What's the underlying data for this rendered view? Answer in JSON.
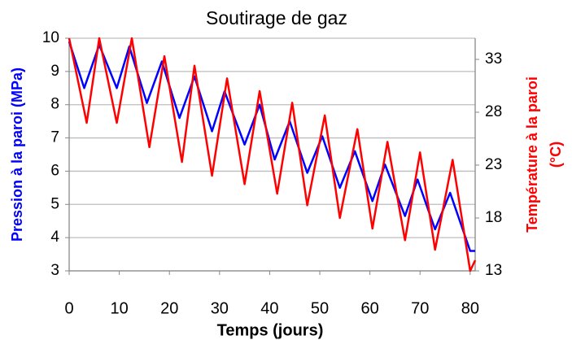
{
  "chart_data": {
    "type": "line",
    "title": "Soutirage de gaz",
    "xlabel": "Temps (jours)",
    "ylabel": "Pression à la paroi (MPa)",
    "y2label": [
      "Température à la paroi",
      "(°C)"
    ],
    "xlim": [
      0,
      81
    ],
    "xticks": [
      0,
      10,
      20,
      30,
      40,
      50,
      60,
      70,
      80
    ],
    "ylim": [
      3,
      10
    ],
    "yticks": [
      3,
      4,
      5,
      6,
      7,
      8,
      9,
      10
    ],
    "y2lim": [
      13,
      35
    ],
    "y2ticks": [
      13,
      18,
      23,
      28,
      33
    ],
    "grid": true,
    "series": [
      {
        "color": "#0000ff",
        "axis": "y",
        "x": [
          0,
          3,
          6,
          9.5,
          12,
          15.5,
          18.5,
          22,
          25,
          28.5,
          31,
          35,
          38,
          41,
          44,
          47.5,
          50.5,
          54,
          57,
          60.5,
          63,
          67,
          69.5,
          73,
          76,
          80,
          81
        ],
        "values": [
          9.9,
          8.5,
          9.8,
          8.5,
          9.75,
          8.05,
          9.3,
          7.6,
          8.85,
          7.2,
          8.4,
          6.8,
          8.0,
          6.35,
          7.5,
          5.95,
          7.05,
          5.5,
          6.6,
          5.1,
          6.2,
          4.65,
          5.75,
          4.25,
          5.35,
          3.6,
          3.6
        ]
      },
      {
        "color": "#ff0000",
        "axis": "y2",
        "x": [
          0,
          3.5,
          6,
          9.5,
          12.5,
          16,
          19,
          22.5,
          25,
          28.5,
          31.5,
          35,
          38,
          41.5,
          44.5,
          47.5,
          51,
          54,
          57.5,
          60.5,
          63.5,
          67,
          70,
          73,
          76.5,
          80,
          81
        ],
        "values": [
          35,
          27,
          35,
          27,
          35,
          24.7,
          33.3,
          23.3,
          32.4,
          22,
          31.2,
          21.2,
          30,
          20.3,
          28.9,
          19.2,
          27.7,
          18,
          26.4,
          17,
          25.2,
          15.9,
          24.2,
          15,
          23.5,
          13,
          14
        ]
      }
    ]
  }
}
